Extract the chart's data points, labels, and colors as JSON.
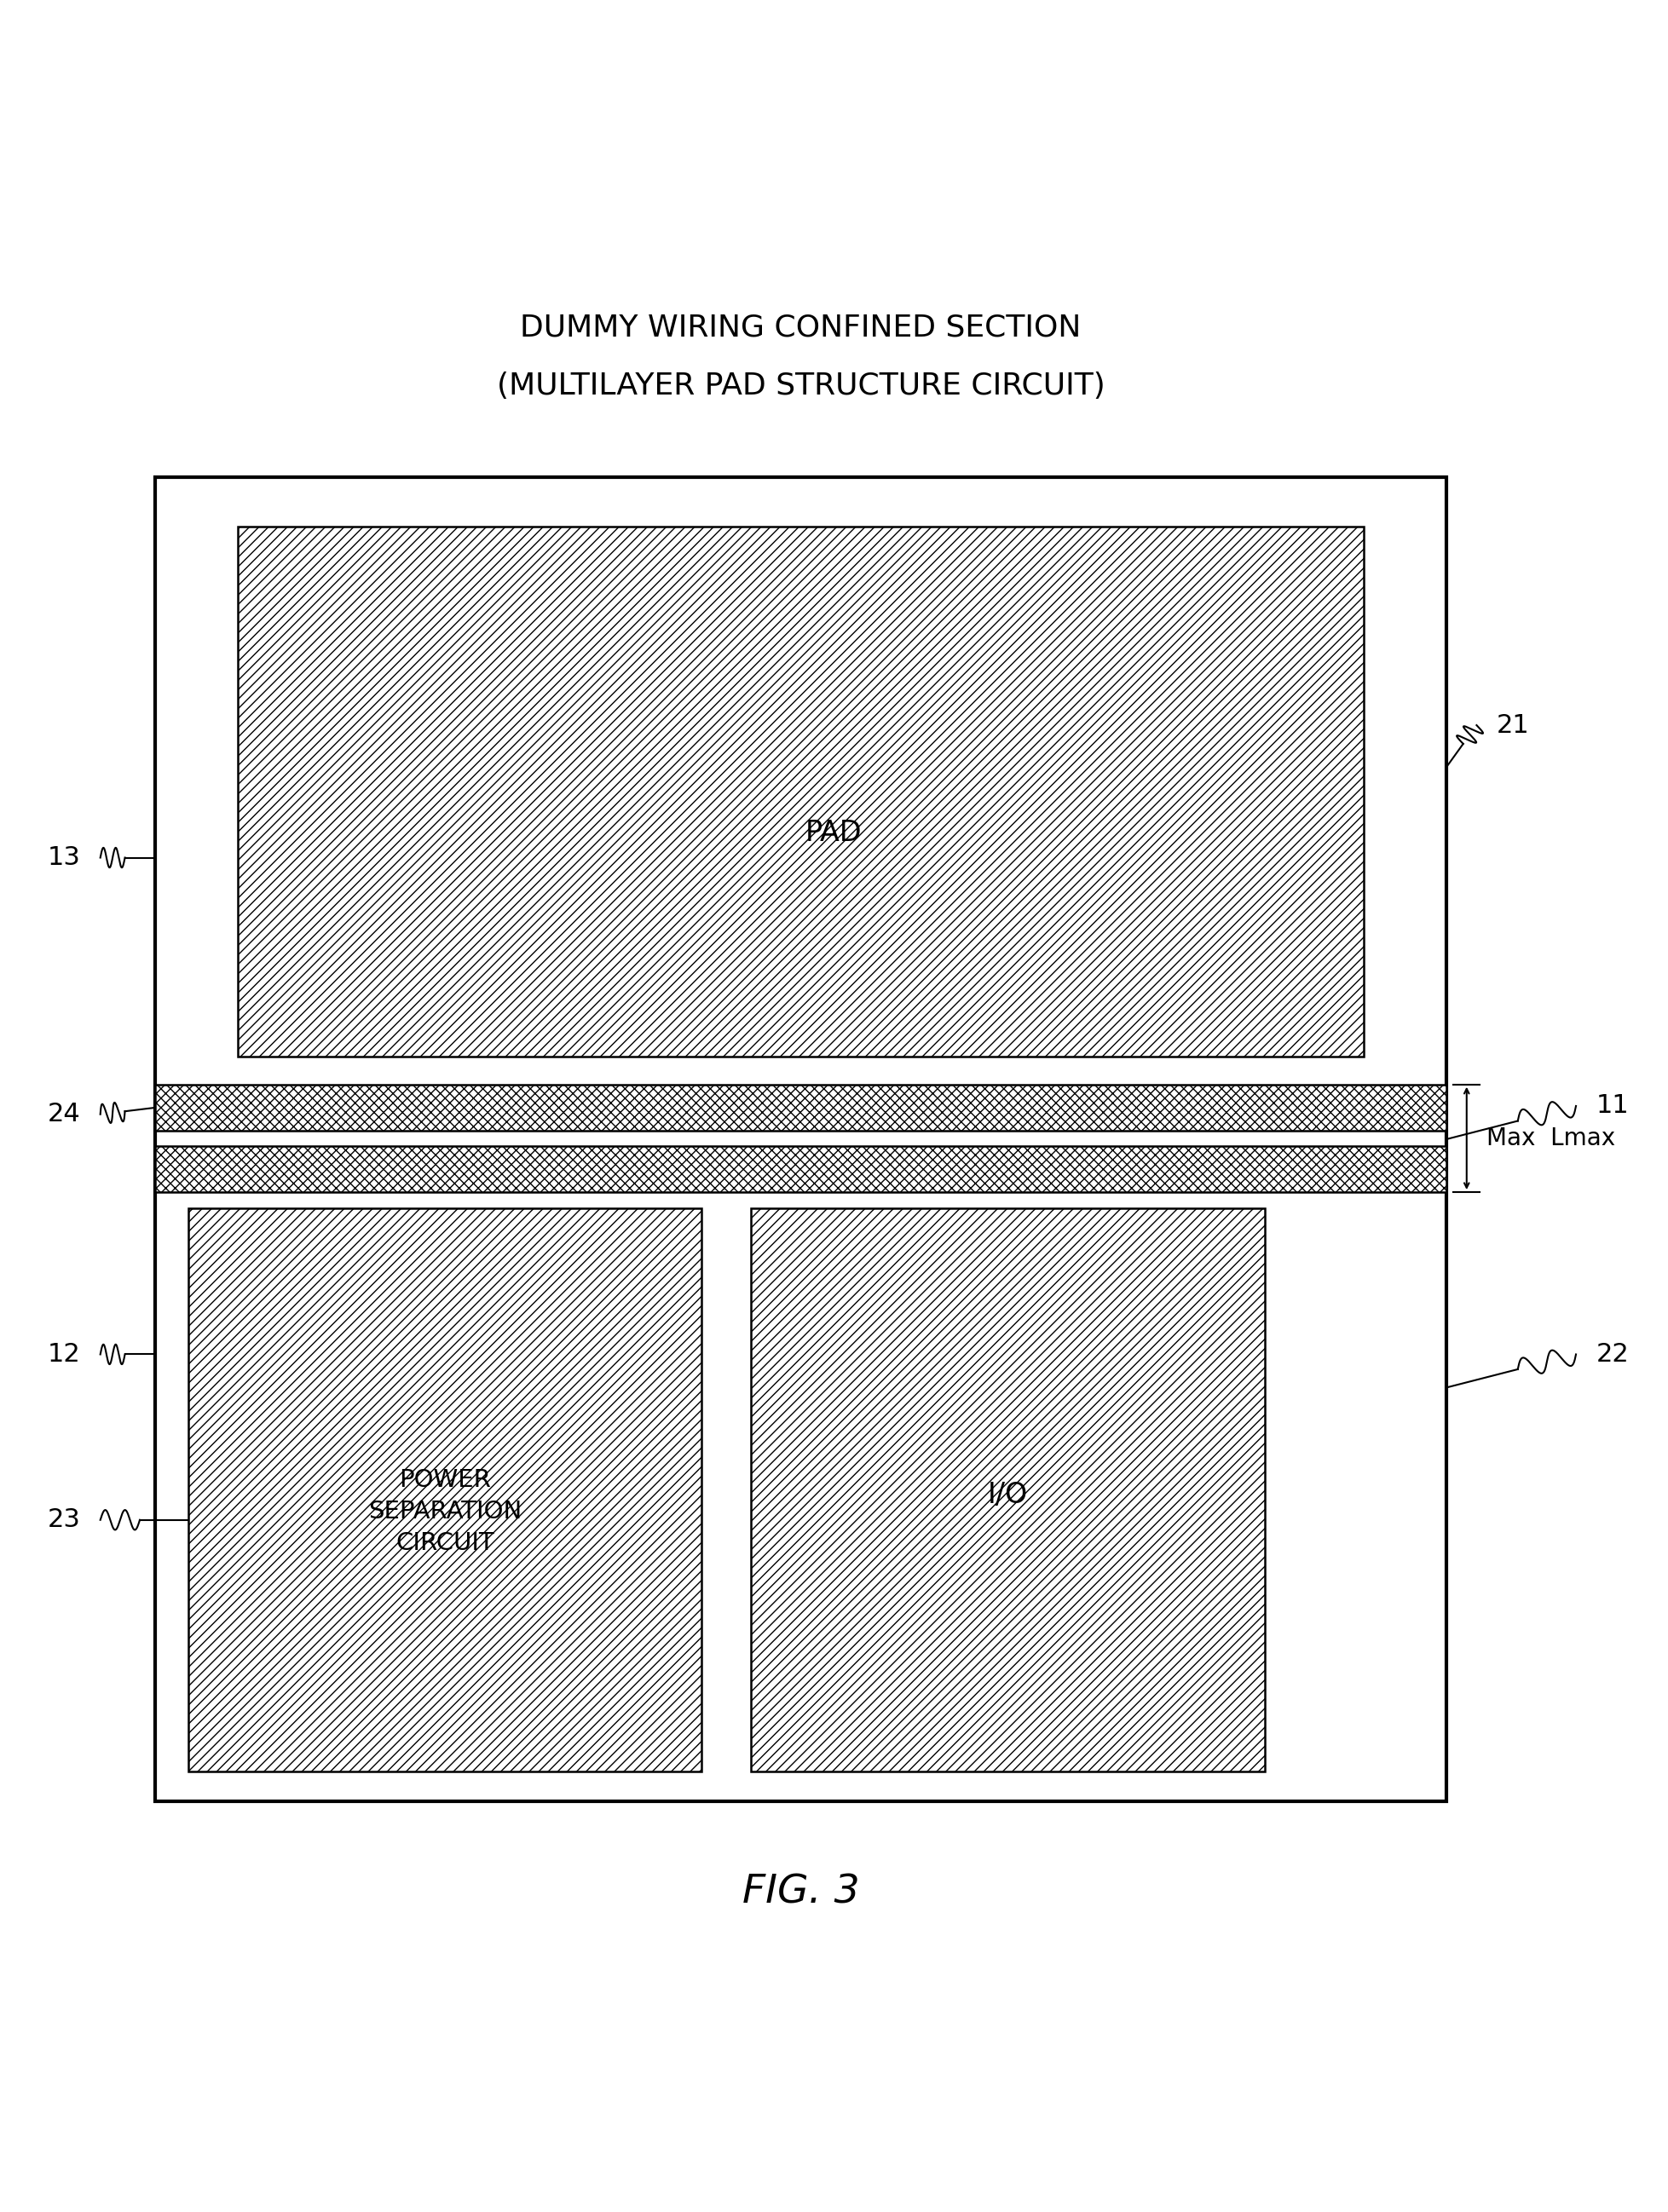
{
  "title_line1": "DUMMY WIRING CONFINED SECTION",
  "title_line2": "(MULTILAYER PAD STRUCTURE CIRCUIT)",
  "fig_label": "FIG. 3",
  "bg_color": "#ffffff"
}
